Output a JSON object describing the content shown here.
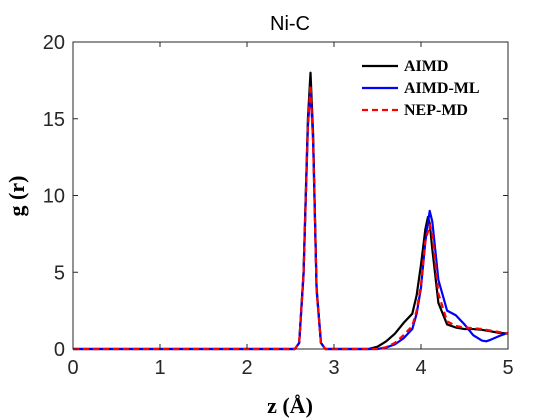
{
  "chart_data": {
    "type": "line",
    "title": "Ni-C",
    "xlabel": "z (Å)",
    "ylabel": "g (r)",
    "xlim": [
      0,
      5
    ],
    "ylim": [
      0,
      20
    ],
    "xticks": [
      "0",
      "1",
      "2",
      "3",
      "4",
      "5"
    ],
    "yticks": [
      "0",
      "5",
      "10",
      "15",
      "20"
    ],
    "grid": false,
    "legend_position": "top-right",
    "series": [
      {
        "name": "AIMD",
        "color": "#000000",
        "dash": "solid",
        "x": [
          0,
          2.55,
          2.6,
          2.65,
          2.7,
          2.73,
          2.76,
          2.8,
          2.85,
          2.9,
          3.0,
          3.4,
          3.5,
          3.6,
          3.7,
          3.8,
          3.9,
          3.95,
          4.0,
          4.05,
          4.08,
          4.1,
          4.13,
          4.2,
          4.3,
          4.4,
          4.5,
          4.6,
          4.7,
          4.8,
          4.9,
          5.0
        ],
        "y": [
          0,
          0,
          0.4,
          5.0,
          15.0,
          18.0,
          14.0,
          4.0,
          0.4,
          0,
          0,
          0,
          0.15,
          0.5,
          1.0,
          1.7,
          2.3,
          3.5,
          5.5,
          7.8,
          8.6,
          8.2,
          6.5,
          3.0,
          1.6,
          1.4,
          1.3,
          1.3,
          1.25,
          1.15,
          1.05,
          1.0
        ]
      },
      {
        "name": "AIMD-ML",
        "color": "#0000ff",
        "dash": "solid",
        "x": [
          0,
          2.55,
          2.6,
          2.65,
          2.7,
          2.73,
          2.76,
          2.8,
          2.85,
          2.9,
          3.0,
          3.5,
          3.6,
          3.7,
          3.8,
          3.9,
          3.95,
          4.0,
          4.05,
          4.1,
          4.13,
          4.2,
          4.3,
          4.4,
          4.5,
          4.6,
          4.7,
          4.75,
          4.8,
          4.9,
          5.0
        ],
        "y": [
          0,
          0,
          0.4,
          4.8,
          14.5,
          17.0,
          13.5,
          3.8,
          0.4,
          0,
          0,
          0,
          0.1,
          0.3,
          0.7,
          1.3,
          2.3,
          4.0,
          7.0,
          9.0,
          8.3,
          4.5,
          2.5,
          2.2,
          1.6,
          0.9,
          0.55,
          0.5,
          0.6,
          0.85,
          1.05
        ]
      },
      {
        "name": "NEP-MD",
        "color": "#ff0000",
        "dash": "dashed",
        "x": [
          0,
          2.55,
          2.6,
          2.65,
          2.7,
          2.73,
          2.76,
          2.8,
          2.85,
          2.9,
          3.0,
          3.5,
          3.6,
          3.7,
          3.8,
          3.9,
          3.95,
          4.0,
          4.05,
          4.1,
          4.13,
          4.2,
          4.3,
          4.4,
          4.5,
          4.6,
          4.7,
          4.8,
          4.9,
          5.0
        ],
        "y": [
          0,
          0,
          0.4,
          4.9,
          14.5,
          17.2,
          13.5,
          3.8,
          0.4,
          0,
          0,
          0,
          0.12,
          0.4,
          0.9,
          1.5,
          2.5,
          4.2,
          7.0,
          8.1,
          7.5,
          3.6,
          1.8,
          1.5,
          1.4,
          1.35,
          1.3,
          1.2,
          1.1,
          1.0
        ]
      }
    ]
  }
}
